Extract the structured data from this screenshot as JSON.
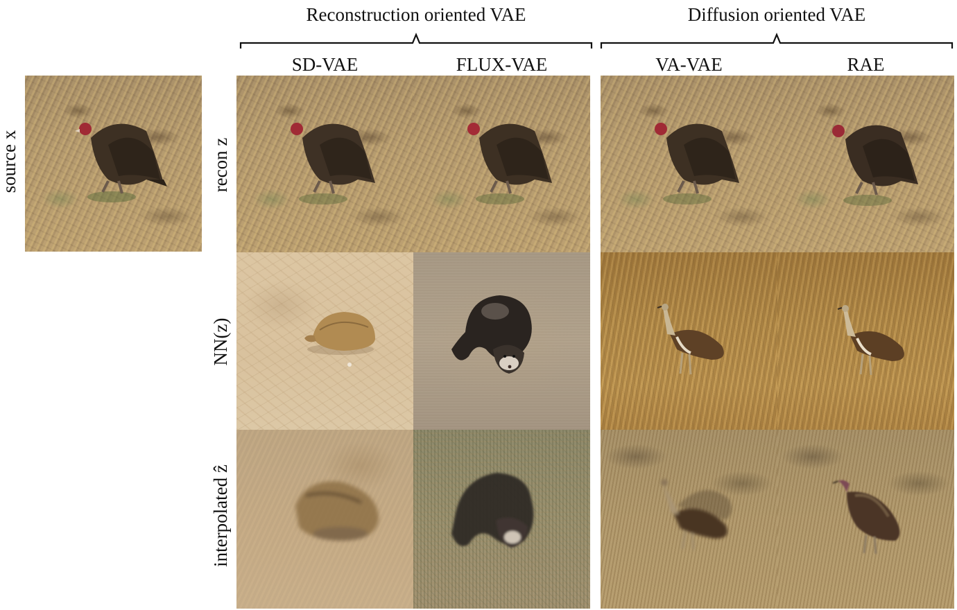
{
  "groups": [
    {
      "title": "Reconstruction oriented VAE"
    },
    {
      "title": "Diffusion oriented VAE"
    }
  ],
  "columns": [
    "SD-VAE",
    "FLUX-VAE",
    "VA-VAE",
    "RAE"
  ],
  "rows": [
    "recon z",
    "NN(z)",
    "interpolated ẑ"
  ],
  "source_label": "source x",
  "images": {
    "source": "vulture-in-field",
    "recon": [
      "vulture-in-field",
      "vulture-in-field",
      "vulture-in-field",
      "vulture-in-field"
    ],
    "nn": [
      "tortoise-on-sand",
      "ferret-on-sand",
      "bustard-in-grass",
      "bustard-in-grass"
    ],
    "interpolated": [
      "blurred-tortoise",
      "noisy-ferret",
      "blurred-bustard",
      "bird-hybrid"
    ]
  }
}
